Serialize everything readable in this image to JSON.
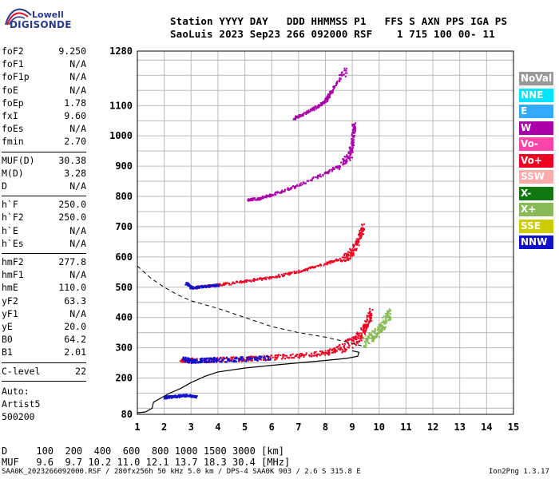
{
  "logo": {
    "top_text": "Lowell",
    "bottom_text": "DIGISONDE"
  },
  "header": {
    "line1": "Station YYYY DAY   DDD HHMMSS P1   FFS S AXN PPS IGA PS",
    "line2": "SaoLuis 2023 Sep23 266 092000 RSF    1 715 100 00- 11"
  },
  "params": [
    {
      "group": 1,
      "label": "foF2",
      "value": "9.250"
    },
    {
      "group": 1,
      "label": "foF1",
      "value": "N/A"
    },
    {
      "group": 1,
      "label": "foF1p",
      "value": "N/A"
    },
    {
      "group": 1,
      "label": "foE",
      "value": "N/A"
    },
    {
      "group": 1,
      "label": "foEp",
      "value": "1.78"
    },
    {
      "group": 1,
      "label": "fxI",
      "value": "9.60"
    },
    {
      "group": 1,
      "label": "foEs",
      "value": "N/A"
    },
    {
      "group": 1,
      "label": "fmin",
      "value": "2.70"
    },
    {
      "group": 2,
      "label": "MUF(D)",
      "value": "30.38"
    },
    {
      "group": 2,
      "label": "M(D)",
      "value": "3.28"
    },
    {
      "group": 2,
      "label": "D",
      "value": "N/A"
    },
    {
      "group": 3,
      "label": "h`F",
      "value": "250.0"
    },
    {
      "group": 3,
      "label": "h`F2",
      "value": "250.0"
    },
    {
      "group": 3,
      "label": "h`E",
      "value": "N/A"
    },
    {
      "group": 3,
      "label": "h`Es",
      "value": "N/A"
    },
    {
      "group": 4,
      "label": "hmF2",
      "value": "277.8"
    },
    {
      "group": 4,
      "label": "hmF1",
      "value": "N/A"
    },
    {
      "group": 4,
      "label": "hmE",
      "value": "110.0"
    },
    {
      "group": 4,
      "label": "yF2",
      "value": "63.3"
    },
    {
      "group": 4,
      "label": "yF1",
      "value": "N/A"
    },
    {
      "group": 4,
      "label": "yE",
      "value": "20.0"
    },
    {
      "group": 4,
      "label": "B0",
      "value": "64.2"
    },
    {
      "group": 4,
      "label": "B1",
      "value": "2.01"
    },
    {
      "group": 5,
      "label": "C-level",
      "value": "22"
    }
  ],
  "auto_block": [
    "Auto:",
    "Artist5",
    "500200"
  ],
  "legend": [
    {
      "label": "NoVal",
      "bg": "#999999",
      "fg": "#ffffff"
    },
    {
      "label": "NNE",
      "bg": "#00e5ff",
      "fg": "#ffffff"
    },
    {
      "label": "E",
      "bg": "#33aaff",
      "fg": "#ffffff"
    },
    {
      "label": "W",
      "bg": "#aa00aa",
      "fg": "#ffffff"
    },
    {
      "label": "Vo-",
      "bg": "#ff44aa",
      "fg": "#ffffff"
    },
    {
      "label": "Vo+",
      "bg": "#ee0022",
      "fg": "#ffffff"
    },
    {
      "label": "SSW",
      "bg": "#ffaaaa",
      "fg": "#ffffff"
    },
    {
      "label": "X-",
      "bg": "#117711",
      "fg": "#ffffff"
    },
    {
      "label": "X+",
      "bg": "#88bb55",
      "fg": "#ffffff"
    },
    {
      "label": "SSE",
      "bg": "#cccc00",
      "fg": "#ffffff"
    },
    {
      "label": "NNW",
      "bg": "#1111cc",
      "fg": "#ffffff"
    }
  ],
  "footer": {
    "distance_row": "D     100  200  400  600  800 1000 1500 3000 [km]",
    "muf_row": "MUF   9.6  9.7 10.2 11.0 12.1 13.7 18.3 30.4 [MHz]",
    "file_info": "SAA0K_2023266092000.RSF / 280fx256h 50 kHz 5.0 km / DPS-4 SAA0K 903 / 2.6 S 315.8 E",
    "version": "Ion2Png 1.3.17"
  },
  "chart_data": {
    "type": "scatter",
    "title": "",
    "xlabel": "",
    "ylabel": "",
    "xlim": [
      1,
      15
    ],
    "ylim": [
      80,
      1280
    ],
    "x_ticks": [
      1,
      2,
      3,
      4,
      5,
      6,
      7,
      8,
      9,
      10,
      11,
      12,
      13,
      14,
      15
    ],
    "y_ticks": [
      80,
      200,
      300,
      400,
      500,
      600,
      700,
      800,
      900,
      1000,
      1100,
      1280
    ],
    "grid": true,
    "legend_position": "right",
    "true_height_profile": [
      [
        1.0,
        85
      ],
      [
        1.3,
        88
      ],
      [
        1.55,
        100
      ],
      [
        1.6,
        120
      ],
      [
        1.8,
        130
      ],
      [
        2.2,
        150
      ],
      [
        2.6,
        165
      ],
      [
        3.0,
        185
      ],
      [
        3.5,
        205
      ],
      [
        4.0,
        220
      ],
      [
        5.0,
        233
      ],
      [
        6.0,
        242
      ],
      [
        7.0,
        250
      ],
      [
        8.0,
        258
      ],
      [
        8.8,
        265
      ],
      [
        9.2,
        272
      ],
      [
        9.25,
        285
      ],
      [
        9.0,
        290
      ]
    ],
    "model_profile_dashed": [
      [
        1.0,
        570
      ],
      [
        1.5,
        530
      ],
      [
        2.0,
        500
      ],
      [
        2.5,
        475
      ],
      [
        3.0,
        455
      ],
      [
        4.0,
        430
      ],
      [
        5.0,
        400
      ],
      [
        6.0,
        370
      ],
      [
        7.0,
        350
      ],
      [
        8.0,
        335
      ],
      [
        9.0,
        315
      ],
      [
        9.4,
        305
      ]
    ],
    "echo_traces": [
      {
        "name": "1F",
        "color": "#ee0022",
        "points": [
          [
            2.6,
            262
          ],
          [
            3.0,
            260
          ],
          [
            4.0,
            262
          ],
          [
            5.0,
            266
          ],
          [
            6.0,
            270
          ],
          [
            7.0,
            276
          ],
          [
            8.0,
            285
          ],
          [
            8.5,
            300
          ],
          [
            9.0,
            320
          ],
          [
            9.3,
            345
          ],
          [
            9.5,
            380
          ],
          [
            9.7,
            420
          ]
        ]
      },
      {
        "name": "1F",
        "color": "#88bb55",
        "points": [
          [
            9.4,
            320
          ],
          [
            9.7,
            340
          ],
          [
            10.0,
            360
          ],
          [
            10.2,
            390
          ],
          [
            10.4,
            420
          ]
        ]
      },
      {
        "name": "1F",
        "color": "#1111cc",
        "points": [
          [
            2.7,
            265
          ],
          [
            3.0,
            258
          ],
          [
            3.5,
            262
          ],
          [
            4.0,
            262
          ],
          [
            5.0,
            265
          ],
          [
            6.0,
            270
          ]
        ]
      },
      {
        "name": "2F",
        "color": "#ee0022",
        "points": [
          [
            3.0,
            500
          ],
          [
            4.0,
            510
          ],
          [
            5.0,
            522
          ],
          [
            6.0,
            535
          ],
          [
            7.0,
            555
          ],
          [
            8.0,
            580
          ],
          [
            8.7,
            600
          ],
          [
            9.0,
            620
          ],
          [
            9.2,
            660
          ],
          [
            9.4,
            700
          ]
        ]
      },
      {
        "name": "2F",
        "color": "#1111cc",
        "points": [
          [
            2.8,
            515
          ],
          [
            3.0,
            500
          ],
          [
            3.5,
            505
          ],
          [
            4.0,
            508
          ]
        ]
      },
      {
        "name": "3F",
        "color": "#aa00aa",
        "points": [
          [
            5.1,
            790
          ],
          [
            5.5,
            795
          ],
          [
            6.0,
            808
          ],
          [
            7.0,
            840
          ],
          [
            8.0,
            880
          ],
          [
            8.6,
            910
          ],
          [
            8.9,
            940
          ],
          [
            9.0,
            990
          ],
          [
            9.05,
            1050
          ]
        ]
      },
      {
        "name": "4F",
        "color": "#aa00aa",
        "points": [
          [
            6.8,
            1060
          ],
          [
            7.2,
            1075
          ],
          [
            7.6,
            1095
          ],
          [
            8.0,
            1120
          ],
          [
            8.2,
            1150
          ],
          [
            8.8,
            1230
          ]
        ]
      },
      {
        "name": "Es",
        "color": "#1111cc",
        "points": [
          [
            2.0,
            138
          ],
          [
            2.2,
            140
          ],
          [
            2.5,
            142
          ],
          [
            2.8,
            145
          ],
          [
            3.2,
            140
          ]
        ]
      }
    ]
  }
}
